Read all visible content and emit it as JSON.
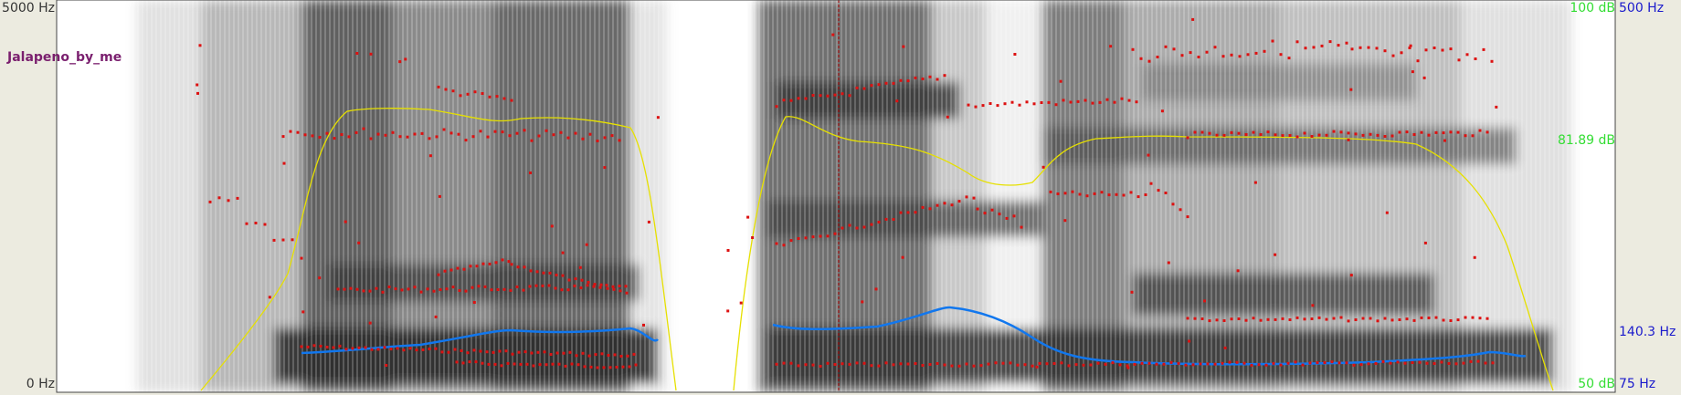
{
  "window": {
    "background": "#ecebe0",
    "plot_background": "#ffffff"
  },
  "spectrogram": {
    "sound_name": "Jalapeno_by_me",
    "sound_name_color": "#7a1f6e",
    "left_axis": {
      "top_label": "5000 Hz",
      "bottom_label": "0 Hz",
      "color": "#333333"
    },
    "intensity_axis": {
      "top_label": "100 dB",
      "mid_label": "81.89 dB",
      "bottom_label": "50 dB",
      "color": "#33dd33"
    },
    "pitch_axis": {
      "top_label": "500 Hz",
      "mid_label": "140.3 Hz",
      "bottom_label": "75 Hz",
      "color": "#1a1acc"
    },
    "colors": {
      "formant": "#dd1111",
      "intensity_curve": "#e6e000",
      "pitch_curve": "#1177ee",
      "cursor": "#aa0000"
    }
  }
}
